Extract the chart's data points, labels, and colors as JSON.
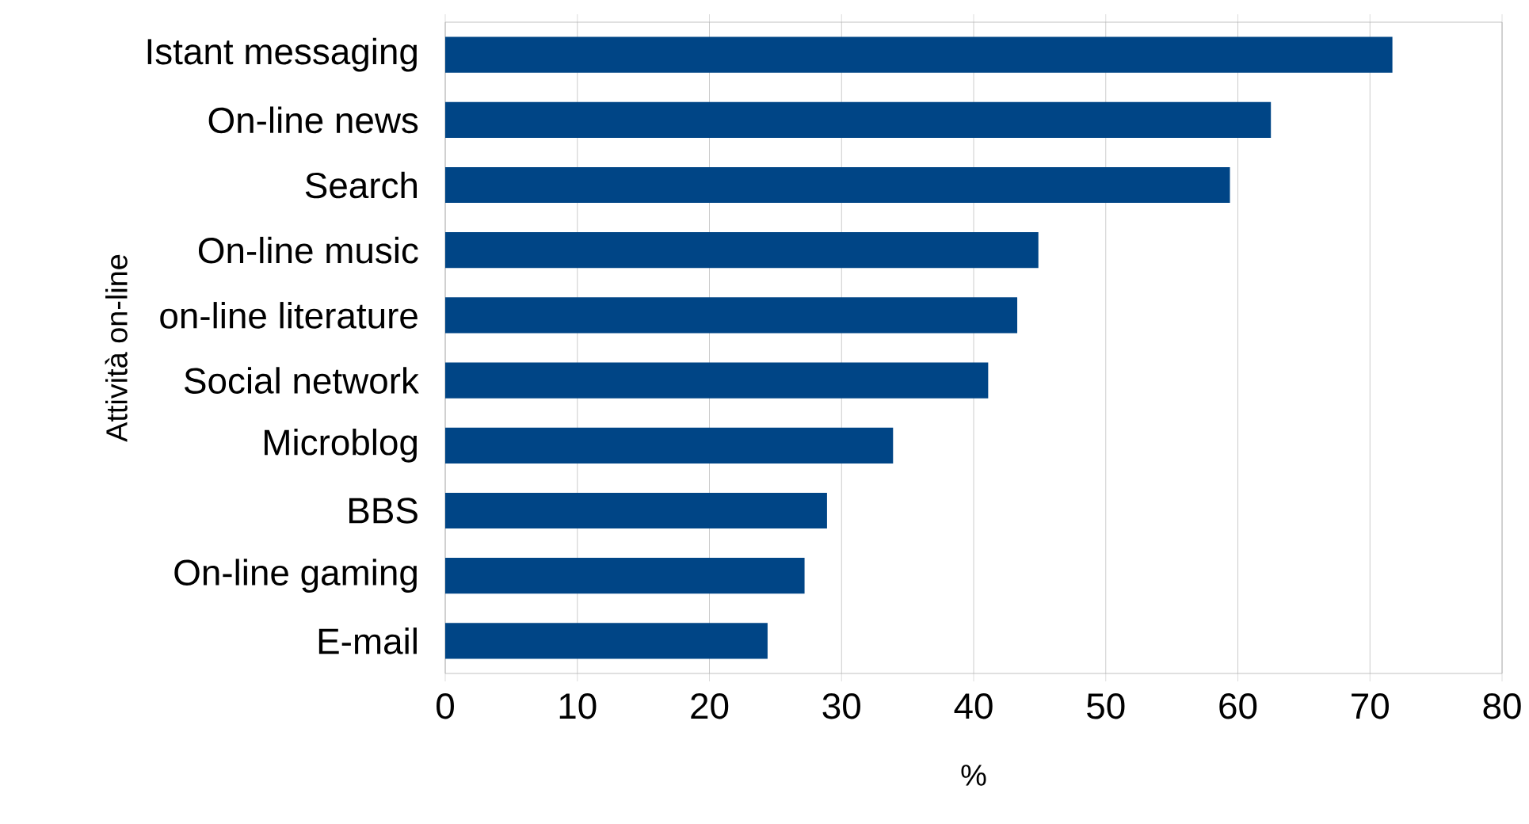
{
  "chart_data": {
    "type": "bar",
    "orientation": "horizontal",
    "xlabel": "%",
    "ylabel": "Attività on-line",
    "categories": [
      "Istant messaging",
      "On-line news",
      "Search",
      "On-line music",
      "on-line literature",
      "Social network",
      "Microblog",
      "BBS",
      "On-line gaming",
      "E-mail"
    ],
    "values": [
      71.7,
      62.5,
      59.4,
      44.9,
      43.3,
      41.1,
      33.9,
      28.9,
      27.2,
      24.4
    ],
    "color": "#004586",
    "xlim": [
      0,
      80
    ],
    "xticks": [
      0,
      10,
      20,
      30,
      40,
      50,
      60,
      70,
      80
    ],
    "grid": "x"
  }
}
